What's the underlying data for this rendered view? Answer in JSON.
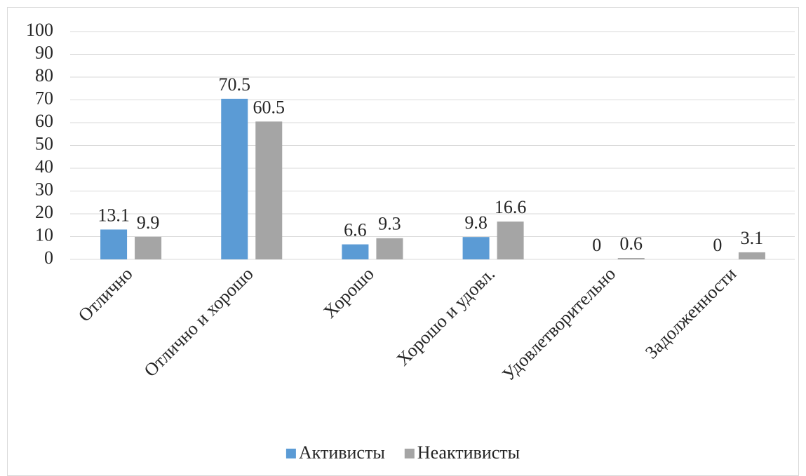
{
  "chart_data": {
    "type": "bar",
    "categories": [
      "Отлично",
      "Отлично и хорошо",
      "Хорошо",
      "Хорошо и удовл.",
      "Удовлетворительно",
      "Задолженности"
    ],
    "series": [
      {
        "name": "Активисты",
        "color": "#5b9bd5",
        "values": [
          13.1,
          70.5,
          6.6,
          9.8,
          0,
          0
        ]
      },
      {
        "name": "Неактивисты",
        "color": "#a5a5a5",
        "values": [
          9.9,
          60.5,
          9.3,
          16.6,
          0.6,
          3.1
        ]
      }
    ],
    "ylim": [
      0,
      100
    ],
    "yticks": [
      0,
      10,
      20,
      30,
      40,
      50,
      60,
      70,
      80,
      90,
      100
    ],
    "grid": true,
    "legend": "bottom"
  }
}
